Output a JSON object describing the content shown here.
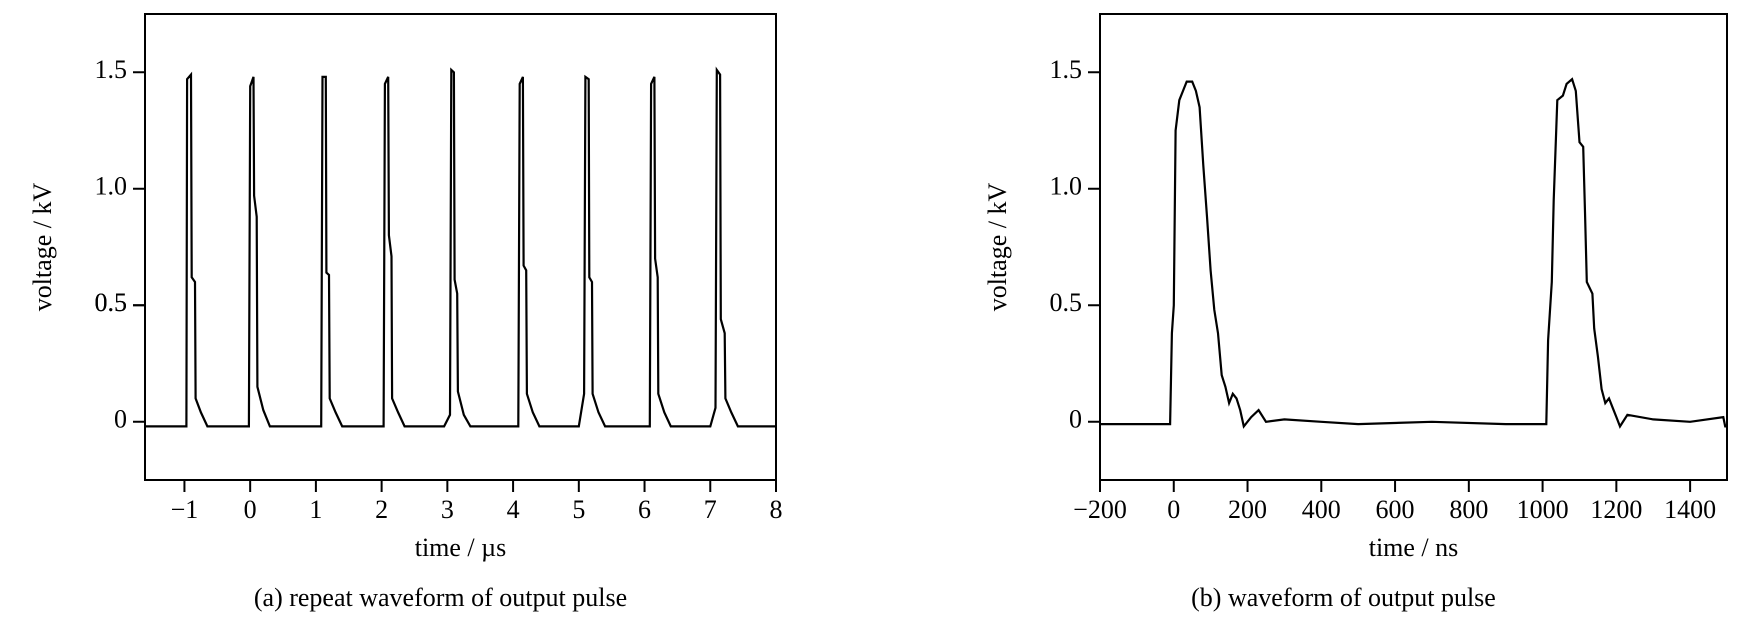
{
  "chart_data": [
    {
      "type": "line",
      "title": "(a) repeat waveform of output pulse",
      "xlabel": "time / µs",
      "ylabel": "voltage / kV",
      "color": "#000000",
      "xlim": [
        -1.6,
        8
      ],
      "ylim": [
        -0.25,
        1.75
      ],
      "xticks": [
        {
          "value": -1,
          "label": "−1"
        },
        0,
        1,
        2,
        3,
        4,
        5,
        6,
        7,
        8
      ],
      "yticks": [
        0,
        0.5,
        {
          "value": 1,
          "label": "1.0"
        },
        0.5,
        {
          "value": 1.5,
          "label": "1.5"
        }
      ],
      "x": [
        -1.6,
        -1.2,
        -0.97,
        -0.96,
        -0.9,
        -0.89,
        -0.84,
        -0.83,
        -0.75,
        -0.65,
        -0.02,
        0,
        0.05,
        0.06,
        0.1,
        0.11,
        0.2,
        0.3,
        1.08,
        1.1,
        1.15,
        1.16,
        1.2,
        1.21,
        1.3,
        1.4,
        2.03,
        2.05,
        2.1,
        2.11,
        2.15,
        2.16,
        2.25,
        2.35,
        2.95,
        3.04,
        3.06,
        3.1,
        3.11,
        3.15,
        3.16,
        3.25,
        3.35,
        4.08,
        4.1,
        4.15,
        4.16,
        4.2,
        4.21,
        4.3,
        4.4,
        5.0,
        5.08,
        5.1,
        5.15,
        5.16,
        5.2,
        5.21,
        5.3,
        5.4,
        6.08,
        6.1,
        6.15,
        6.16,
        6.2,
        6.21,
        6.3,
        6.4,
        7.0,
        7.08,
        7.1,
        7.15,
        7.16,
        7.22,
        7.23,
        7.32,
        7.42,
        8
      ],
      "values": [
        -0.02,
        -0.02,
        -0.02,
        1.47,
        1.49,
        0.62,
        0.6,
        0.1,
        0.04,
        -0.02,
        -0.02,
        1.44,
        1.48,
        0.97,
        0.88,
        0.15,
        0.05,
        -0.02,
        -0.02,
        1.48,
        1.48,
        0.64,
        0.63,
        0.1,
        0.04,
        -0.02,
        -0.02,
        1.45,
        1.48,
        0.8,
        0.71,
        0.1,
        0.04,
        -0.02,
        -0.02,
        0.03,
        1.51,
        1.5,
        0.61,
        0.55,
        0.13,
        0.03,
        -0.02,
        -0.02,
        1.45,
        1.48,
        0.67,
        0.65,
        0.12,
        0.04,
        -0.02,
        -0.02,
        0.12,
        1.48,
        1.47,
        0.62,
        0.6,
        0.12,
        0.04,
        -0.02,
        -0.02,
        1.45,
        1.48,
        0.7,
        0.62,
        0.12,
        0.04,
        -0.02,
        -0.02,
        0.06,
        1.51,
        1.49,
        0.44,
        0.38,
        0.1,
        0.04,
        -0.02,
        -0.02
      ]
    },
    {
      "type": "line",
      "title": "(b) waveform of output pulse",
      "xlabel": "time / ns",
      "ylabel": "voltage / kV",
      "color": "#000000",
      "xlim": [
        -200,
        1500
      ],
      "ylim": [
        -0.25,
        1.75
      ],
      "xticks": [
        {
          "value": -200,
          "label": "−200"
        },
        0,
        200,
        400,
        600,
        800,
        1000,
        1200,
        1400
      ],
      "yticks": [
        0,
        0.5,
        {
          "value": 1,
          "label": "1.0"
        },
        {
          "value": 1.5,
          "label": "1.5"
        }
      ],
      "x": [
        -200,
        -10,
        -5,
        0,
        5,
        15,
        25,
        35,
        50,
        60,
        70,
        80,
        90,
        100,
        110,
        120,
        130,
        140,
        150,
        160,
        170,
        180,
        190,
        210,
        230,
        250,
        300,
        400,
        500,
        700,
        900,
        1010,
        1015,
        1025,
        1030,
        1040,
        1055,
        1065,
        1080,
        1090,
        1100,
        1110,
        1115,
        1120,
        1135,
        1140,
        1150,
        1160,
        1170,
        1180,
        1190,
        1200,
        1210,
        1230,
        1300,
        1400,
        1490,
        1495,
        1500
      ],
      "values": [
        -0.01,
        -0.01,
        0.38,
        0.5,
        1.25,
        1.38,
        1.42,
        1.46,
        1.46,
        1.42,
        1.35,
        1.1,
        0.88,
        0.65,
        0.48,
        0.38,
        0.2,
        0.15,
        0.08,
        0.12,
        0.1,
        0.05,
        -0.02,
        0.02,
        0.05,
        0.0,
        0.01,
        0.0,
        -0.01,
        0.0,
        -0.01,
        -0.01,
        0.35,
        0.6,
        0.95,
        1.38,
        1.4,
        1.45,
        1.47,
        1.42,
        1.2,
        1.18,
        0.9,
        0.6,
        0.55,
        0.4,
        0.28,
        0.14,
        0.08,
        0.1,
        0.06,
        0.02,
        -0.02,
        0.03,
        0.01,
        0.0,
        0.02,
        -0.02,
        -0.02
      ]
    }
  ]
}
